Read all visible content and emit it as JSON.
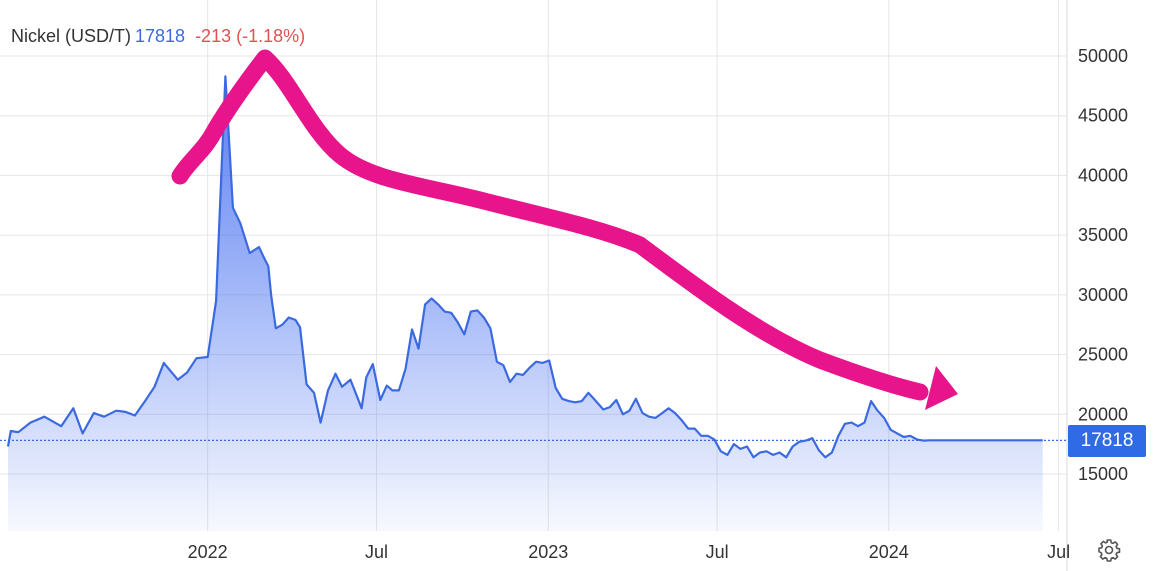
{
  "legend": {
    "name": "Nickel (USD/T)",
    "price": "17818",
    "change": "-213 (-1.18%)"
  },
  "last_price_badge": "17818",
  "colors": {
    "line": "#3b6ae0",
    "badge": "#2f6be5",
    "change_negative": "#e05252",
    "arrow": "#e8148c",
    "grid": "#e6e6e6"
  },
  "icons": {
    "settings": "gear-icon"
  },
  "chart_data": {
    "type": "area",
    "ylim": [
      10000,
      55000
    ],
    "y_ticks": [
      15000,
      20000,
      25000,
      30000,
      35000,
      40000,
      45000,
      50000
    ],
    "y_tick_labels": [
      "15000",
      "20000",
      "25000",
      "30000",
      "35000",
      "40000",
      "45000",
      "50000"
    ],
    "x_ticks": [
      "2022-01-01",
      "2022-07-01",
      "2023-01-01",
      "2023-07-01",
      "2024-01-01",
      "2024-07-01"
    ],
    "x_tick_labels": [
      "2022",
      "Jul",
      "2023",
      "Jul",
      "2024",
      "Jul"
    ],
    "x_range": [
      "2021-06-01",
      "2024-07-10"
    ],
    "grid": true,
    "last_value": 17818,
    "series": [
      {
        "x": [
          "2021-06-01",
          "2021-06-04",
          "2021-06-12",
          "2021-06-25",
          "2021-07-10",
          "2021-07-28",
          "2021-08-10",
          "2021-08-20",
          "2021-09-01",
          "2021-09-12",
          "2021-09-25",
          "2021-10-05",
          "2021-10-15",
          "2021-10-25",
          "2021-11-05",
          "2021-11-15",
          "2021-11-30",
          "2021-12-10",
          "2021-12-20",
          "2022-01-01",
          "2022-01-10",
          "2022-01-20",
          "2022-01-28",
          "2022-02-05",
          "2022-02-15",
          "2022-02-25",
          "2022-03-03",
          "2022-03-07",
          "2022-03-10",
          "2022-03-15",
          "2022-03-22",
          "2022-03-29",
          "2022-04-05",
          "2022-04-10",
          "2022-04-17",
          "2022-04-25",
          "2022-05-02",
          "2022-05-10",
          "2022-05-18",
          "2022-05-25",
          "2022-06-03",
          "2022-06-10",
          "2022-06-15",
          "2022-06-20",
          "2022-06-27",
          "2022-07-05",
          "2022-07-12",
          "2022-07-18",
          "2022-07-25",
          "2022-08-01",
          "2022-08-08",
          "2022-08-15",
          "2022-08-22",
          "2022-08-29",
          "2022-09-05",
          "2022-09-12",
          "2022-09-19",
          "2022-09-26",
          "2022-10-03",
          "2022-10-10",
          "2022-10-17",
          "2022-10-24",
          "2022-10-31",
          "2022-11-07",
          "2022-11-14",
          "2022-11-21",
          "2022-11-28",
          "2022-12-05",
          "2022-12-12",
          "2022-12-19",
          "2022-12-26",
          "2023-01-02",
          "2023-01-09",
          "2023-01-16",
          "2023-01-23",
          "2023-01-30",
          "2023-02-06",
          "2023-02-13",
          "2023-02-20",
          "2023-03-01",
          "2023-03-08",
          "2023-03-15",
          "2023-03-22",
          "2023-03-29",
          "2023-04-05",
          "2023-04-12",
          "2023-04-19",
          "2023-04-26",
          "2023-05-03",
          "2023-05-10",
          "2023-05-17",
          "2023-05-24",
          "2023-05-31",
          "2023-06-07",
          "2023-06-14",
          "2023-06-21",
          "2023-06-28",
          "2023-07-05",
          "2023-07-12",
          "2023-07-19",
          "2023-07-26",
          "2023-08-02",
          "2023-08-09",
          "2023-08-16",
          "2023-08-23",
          "2023-08-30",
          "2023-09-06",
          "2023-09-13",
          "2023-09-20",
          "2023-09-27",
          "2023-10-04",
          "2023-10-11",
          "2023-10-18",
          "2023-10-25",
          "2023-11-01",
          "2023-11-08",
          "2023-11-15",
          "2023-11-22",
          "2023-11-29",
          "2023-12-06",
          "2023-12-13",
          "2023-12-20",
          "2023-12-27",
          "2024-01-03",
          "2024-01-10",
          "2024-01-17",
          "2024-01-24",
          "2024-01-31",
          "2024-02-07",
          "2024-02-14",
          "2024-02-21",
          "2024-02-28",
          "2024-03-06",
          "2024-03-13",
          "2024-03-20",
          "2024-03-27",
          "2024-04-03",
          "2024-04-10",
          "2024-04-17",
          "2024-04-24",
          "2024-05-01",
          "2024-05-08",
          "2024-05-15",
          "2024-05-22",
          "2024-05-29",
          "2024-06-05",
          "2024-06-10",
          "2024-06-14"
        ],
        "y": [
          17300,
          18600,
          18500,
          19300,
          19800,
          19000,
          20500,
          18400,
          20100,
          19800,
          20300,
          20200,
          19900,
          21000,
          22300,
          24300,
          22900,
          23500,
          24700,
          24800,
          29500,
          48300,
          37300,
          36000,
          33500,
          34000,
          33000,
          32400,
          30000,
          27200,
          27500,
          28100,
          27900,
          27300,
          22500,
          21800,
          19300,
          22000,
          23400,
          22300,
          22900,
          21500,
          20500,
          23100,
          24200,
          21200,
          22400,
          22000,
          22000,
          23800,
          27100,
          25500,
          29200,
          29700,
          29200,
          28600,
          28500,
          27700,
          26700,
          28600,
          28700,
          28100,
          27200,
          24400,
          24100,
          22700,
          23400,
          23300,
          23900,
          24400,
          24300,
          24500,
          22200,
          21300,
          21100,
          21000,
          21100,
          21800,
          21200,
          20400,
          20600,
          21200,
          20000,
          20300,
          21300,
          20100,
          19800,
          19700,
          20100,
          20500,
          20100,
          19500,
          18800,
          18800,
          18200,
          18200,
          17900,
          16900,
          16600,
          17500,
          17100,
          17300,
          16400,
          16800,
          16900,
          16600,
          16800,
          16400,
          17300,
          17700,
          17800,
          18000,
          17000,
          16400,
          16800,
          18200,
          19200,
          19300,
          19000,
          19300,
          21100,
          20300,
          19700,
          18700,
          18400,
          18100,
          18200,
          17900,
          17800,
          17818,
          17818,
          17818,
          17818,
          17818,
          17818,
          17818,
          17818,
          17818,
          17818,
          17818,
          17818,
          17818,
          17818,
          17818,
          17818,
          17818,
          17818,
          17818
        ]
      }
    ]
  }
}
